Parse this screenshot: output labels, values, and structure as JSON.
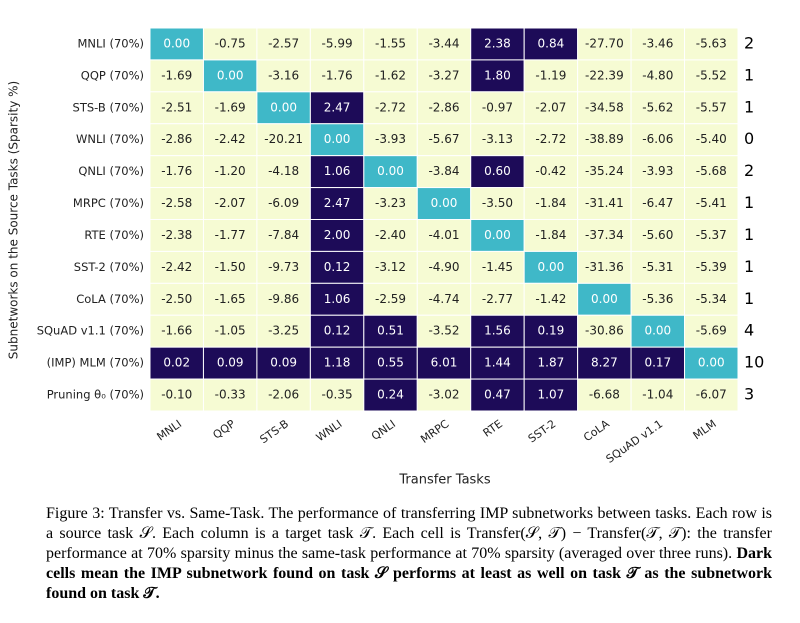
{
  "chart_data": {
    "type": "heatmap",
    "ylabel": "Subnetworks on the Source Tasks (Sparsity %)",
    "xlabel": "Transfer Tasks",
    "rows": [
      "MNLI (70%)",
      "QQP (70%)",
      "STS-B (70%)",
      "WNLI (70%)",
      "QNLI (70%)",
      "MRPC (70%)",
      "RTE (70%)",
      "SST-2 (70%)",
      "CoLA (70%)",
      "SQuAD v1.1 (70%)",
      "(IMP) MLM (70%)",
      "Pruning θ₀ (70%)"
    ],
    "columns": [
      "MNLI",
      "QQP",
      "STS-B",
      "WNLI",
      "QNLI",
      "MRPC",
      "RTE",
      "SST-2",
      "CoLA",
      "SQuAD v1.1",
      "MLM"
    ],
    "values": [
      [
        0.0,
        -0.75,
        -2.57,
        -5.99,
        -1.55,
        -3.44,
        2.38,
        0.84,
        -27.7,
        -3.46,
        -5.63
      ],
      [
        -1.69,
        0.0,
        -3.16,
        -1.76,
        -1.62,
        -3.27,
        1.8,
        -1.19,
        -22.39,
        -4.8,
        -5.52
      ],
      [
        -2.51,
        -1.69,
        0.0,
        2.47,
        -2.72,
        -2.86,
        -0.97,
        -2.07,
        -34.58,
        -5.62,
        -5.57
      ],
      [
        -2.86,
        -2.42,
        -20.21,
        0.0,
        -3.93,
        -5.67,
        -3.13,
        -2.72,
        -38.89,
        -6.06,
        -5.4
      ],
      [
        -1.76,
        -1.2,
        -4.18,
        1.06,
        0.0,
        -3.84,
        0.6,
        -0.42,
        -35.24,
        -3.93,
        -5.68
      ],
      [
        -2.58,
        -2.07,
        -6.09,
        2.47,
        -3.23,
        0.0,
        -3.5,
        -1.84,
        -31.41,
        -6.47,
        -5.41
      ],
      [
        -2.38,
        -1.77,
        -7.84,
        2.0,
        -2.4,
        -4.01,
        0.0,
        -1.84,
        -37.34,
        -5.6,
        -5.37
      ],
      [
        -2.42,
        -1.5,
        -9.73,
        0.12,
        -3.12,
        -4.9,
        -1.45,
        0.0,
        -31.36,
        -5.31,
        -5.39
      ],
      [
        -2.5,
        -1.65,
        -9.86,
        1.06,
        -2.59,
        -4.74,
        -2.77,
        -1.42,
        0.0,
        -5.36,
        -5.34
      ],
      [
        -1.66,
        -1.05,
        -3.25,
        0.12,
        0.51,
        -3.52,
        1.56,
        0.19,
        -30.86,
        0.0,
        -5.69
      ],
      [
        0.02,
        0.09,
        0.09,
        1.18,
        0.55,
        6.01,
        1.44,
        1.87,
        8.27,
        0.17,
        0.0
      ],
      [
        -0.1,
        -0.33,
        -2.06,
        -0.35,
        0.24,
        -3.02,
        0.47,
        1.07,
        -6.68,
        -1.04,
        -6.07
      ]
    ],
    "value_labels": [
      [
        "0.00",
        "-0.75",
        "-2.57",
        "-5.99",
        "-1.55",
        "-3.44",
        "2.38",
        "0.84",
        "-27.70",
        "-3.46",
        "-5.63"
      ],
      [
        "-1.69",
        "0.00",
        "-3.16",
        "-1.76",
        "-1.62",
        "-3.27",
        "1.80",
        "-1.19",
        "-22.39",
        "-4.80",
        "-5.52"
      ],
      [
        "-2.51",
        "-1.69",
        "0.00",
        "2.47",
        "-2.72",
        "-2.86",
        "-0.97",
        "-2.07",
        "-34.58",
        "-5.62",
        "-5.57"
      ],
      [
        "-2.86",
        "-2.42",
        "-20.21",
        "0.00",
        "-3.93",
        "-5.67",
        "-3.13",
        "-2.72",
        "-38.89",
        "-6.06",
        "-5.40"
      ],
      [
        "-1.76",
        "-1.20",
        "-4.18",
        "1.06",
        "0.00",
        "-3.84",
        "0.60",
        "-0.42",
        "-35.24",
        "-3.93",
        "-5.68"
      ],
      [
        "-2.58",
        "-2.07",
        "-6.09",
        "2.47",
        "-3.23",
        "0.00",
        "-3.50",
        "-1.84",
        "-31.41",
        "-6.47",
        "-5.41"
      ],
      [
        "-2.38",
        "-1.77",
        "-7.84",
        "2.00",
        "-2.40",
        "-4.01",
        "0.00",
        "-1.84",
        "-37.34",
        "-5.60",
        "-5.37"
      ],
      [
        "-2.42",
        "-1.50",
        "-9.73",
        "0.12",
        "-3.12",
        "-4.90",
        "-1.45",
        "0.00",
        "-31.36",
        "-5.31",
        "-5.39"
      ],
      [
        "-2.50",
        "-1.65",
        "-9.86",
        "1.06",
        "-2.59",
        "-4.74",
        "-2.77",
        "-1.42",
        "0.00",
        "-5.36",
        "-5.34"
      ],
      [
        "-1.66",
        "-1.05",
        "-3.25",
        "0.12",
        "0.51",
        "-3.52",
        "1.56",
        "0.19",
        "-30.86",
        "0.00",
        "-5.69"
      ],
      [
        "0.02",
        "0.09",
        "0.09",
        "1.18",
        "0.55",
        "6.01",
        "1.44",
        "1.87",
        "8.27",
        "0.17",
        "0.00"
      ],
      [
        "-0.10",
        "-0.33",
        "-2.06",
        "-0.35",
        "0.24",
        "-3.02",
        "0.47",
        "1.07",
        "-6.68",
        "-1.04",
        "-6.07"
      ]
    ],
    "row_counts": [
      2,
      1,
      1,
      0,
      2,
      1,
      1,
      1,
      1,
      4,
      10,
      3
    ],
    "colors": {
      "diagonal": "#3fb8c8",
      "positive": "#1d0b58",
      "negative": "#f6fbd3"
    }
  },
  "caption": {
    "label": "Figure 3:",
    "text": "Transfer vs. Same-Task. The performance of transferring IMP subnetworks between tasks. Each row is a source task 𝒮. Each column is a target task 𝒯. Each cell is Transfer(𝒮, 𝒯) − Transfer(𝒯, 𝒯): the transfer performance at 70% sparsity minus the same-task performance at 70% sparsity (averaged over three runs).",
    "emphasis": "Dark cells mean the IMP subnetwork found on task 𝒮 performs at least as well on task 𝒯 as the subnetwork found on task 𝒯."
  }
}
